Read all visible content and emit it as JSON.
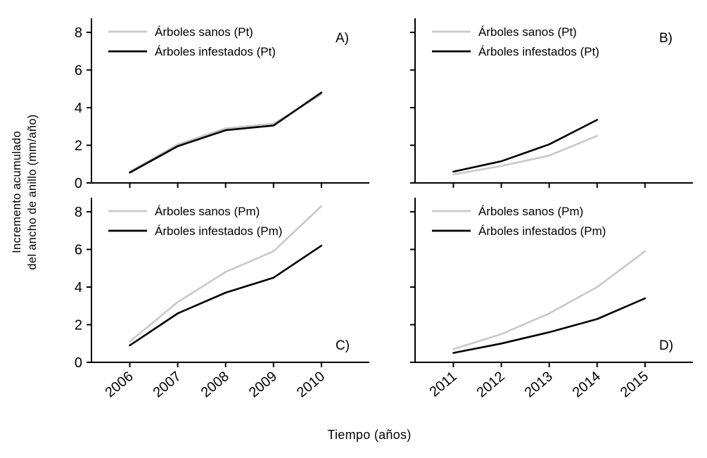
{
  "figure": {
    "background": "#ffffff",
    "y_axis_title_line1": "Incremento acumulado",
    "y_axis_title_line2": "del ancho de anillo (mm/año)",
    "x_axis_title": "Tiempo (años)",
    "colors": {
      "healthy_line": "#c8c8c8",
      "infested_line": "#000000",
      "axis": "#000000"
    }
  },
  "chart_data": [
    {
      "type": "line",
      "panel_label": "A)",
      "panel_label_pos": "top-right",
      "grid_pos": {
        "row": 0,
        "col": 0
      },
      "x": [
        2006,
        2007,
        2008,
        2009,
        2010
      ],
      "xticks": [
        2006,
        2007,
        2008,
        2009,
        2010
      ],
      "yticks": [
        0,
        2,
        4,
        6,
        8
      ],
      "xlim": [
        2005.2,
        2011.0
      ],
      "ylim": [
        0,
        8.6
      ],
      "show_x_tick_labels": false,
      "show_y_tick_labels": true,
      "legend_position": "top-left",
      "series": [
        {
          "name": "Árboles sanos (Pt)",
          "color": "#c8c8c8",
          "values": [
            0.6,
            2.05,
            2.9,
            3.15,
            4.7
          ]
        },
        {
          "name": "Árboles infestados (Pt)",
          "color": "#000000",
          "values": [
            0.55,
            1.95,
            2.8,
            3.05,
            4.8
          ]
        }
      ]
    },
    {
      "type": "line",
      "panel_label": "B)",
      "panel_label_pos": "top-right",
      "grid_pos": {
        "row": 0,
        "col": 1
      },
      "x": [
        2011,
        2012,
        2013,
        2014
      ],
      "xticks": [
        2011,
        2012,
        2013,
        2014,
        2015
      ],
      "yticks": [
        0,
        2,
        4,
        6,
        8
      ],
      "xlim": [
        2010.2,
        2016.0
      ],
      "ylim": [
        0,
        8.6
      ],
      "show_x_tick_labels": false,
      "show_y_tick_labels": false,
      "legend_position": "top-left",
      "series": [
        {
          "name": "Árboles sanos (Pt)",
          "color": "#c8c8c8",
          "values": [
            0.45,
            0.9,
            1.45,
            2.5
          ]
        },
        {
          "name": "Árboles infestados (Pt)",
          "color": "#000000",
          "values": [
            0.6,
            1.15,
            2.05,
            3.35
          ]
        }
      ]
    },
    {
      "type": "line",
      "panel_label": "C)",
      "panel_label_pos": "bottom-right",
      "grid_pos": {
        "row": 1,
        "col": 0
      },
      "x": [
        2006,
        2007,
        2008,
        2009,
        2010
      ],
      "xticks": [
        2006,
        2007,
        2008,
        2009,
        2010
      ],
      "yticks": [
        0,
        2,
        4,
        6,
        8
      ],
      "xlim": [
        2005.2,
        2011.0
      ],
      "ylim": [
        0,
        8.6
      ],
      "show_x_tick_labels": true,
      "show_y_tick_labels": true,
      "legend_position": "top-left",
      "series": [
        {
          "name": "Árboles sanos (Pm)",
          "color": "#c8c8c8",
          "values": [
            1.1,
            3.2,
            4.8,
            5.9,
            8.3
          ]
        },
        {
          "name": "Árboles infestados (Pm)",
          "color": "#000000",
          "values": [
            0.9,
            2.6,
            3.7,
            4.5,
            6.2
          ]
        }
      ]
    },
    {
      "type": "line",
      "panel_label": "D)",
      "panel_label_pos": "bottom-right",
      "grid_pos": {
        "row": 1,
        "col": 1
      },
      "x": [
        2011,
        2012,
        2013,
        2014,
        2015
      ],
      "xticks": [
        2011,
        2012,
        2013,
        2014,
        2015
      ],
      "yticks": [
        0,
        2,
        4,
        6,
        8
      ],
      "xlim": [
        2010.2,
        2016.0
      ],
      "ylim": [
        0,
        8.6
      ],
      "show_x_tick_labels": true,
      "show_y_tick_labels": false,
      "legend_position": "top-left",
      "series": [
        {
          "name": "Árboles sanos (Pm)",
          "color": "#c8c8c8",
          "values": [
            0.7,
            1.5,
            2.6,
            4.0,
            5.9
          ]
        },
        {
          "name": "Árboles infestados (Pm)",
          "color": "#000000",
          "values": [
            0.5,
            1.0,
            1.6,
            2.3,
            3.4
          ]
        }
      ]
    }
  ]
}
